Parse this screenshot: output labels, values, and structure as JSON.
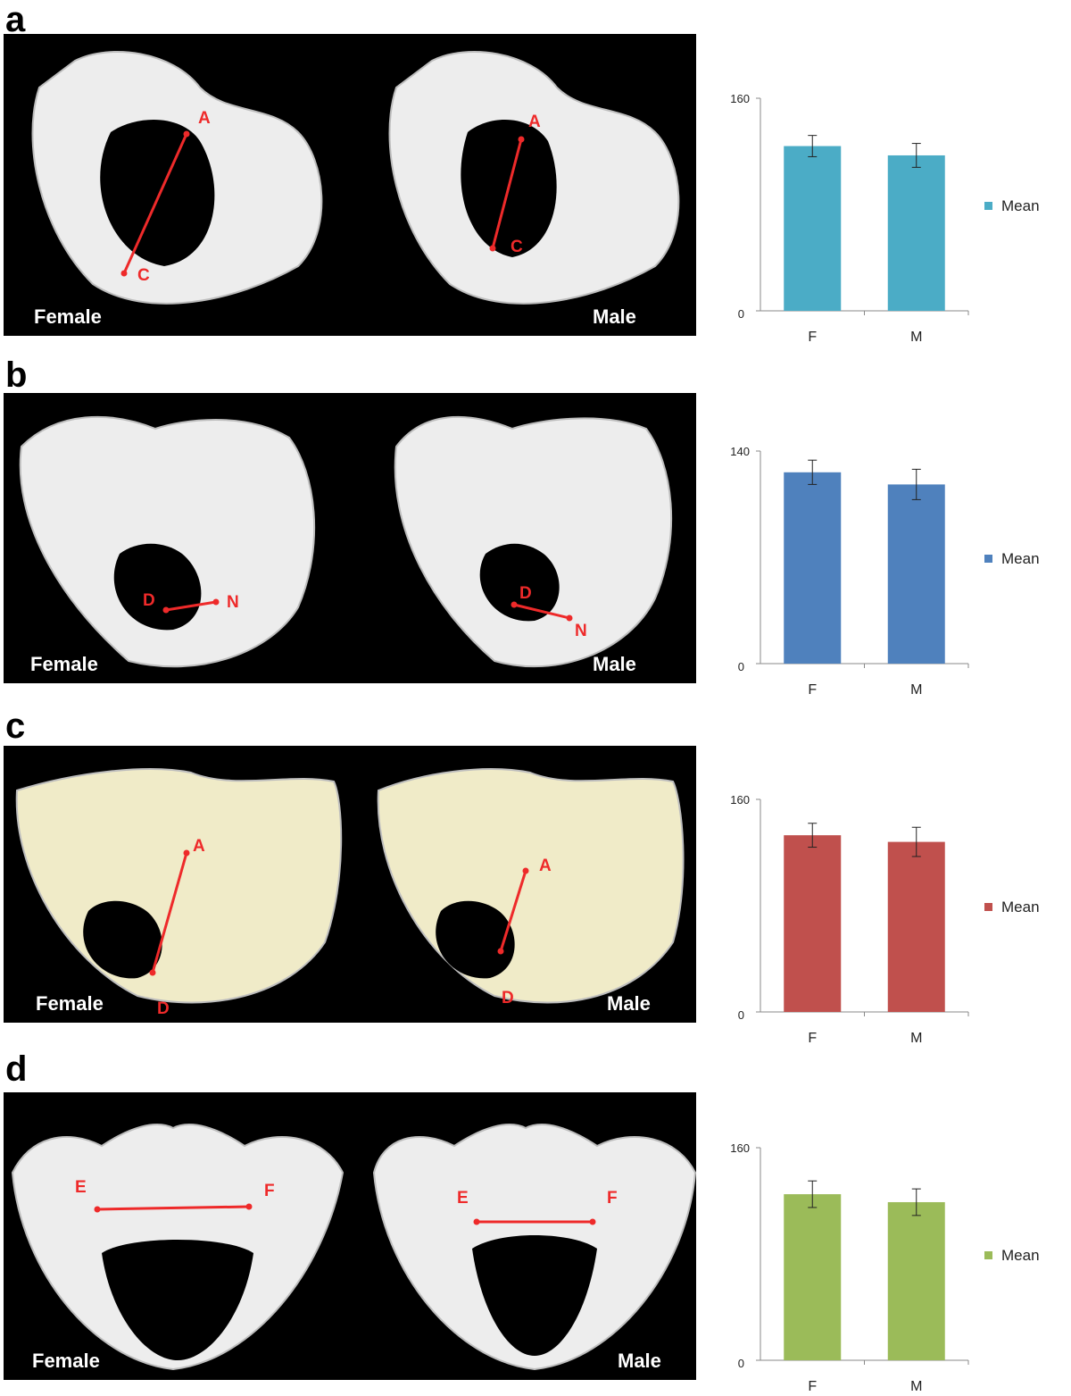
{
  "panels": [
    {
      "letter": "a",
      "female_label": "Female",
      "male_label": "Male",
      "point_labels": [
        "A",
        "C",
        "A",
        "C"
      ],
      "bone_tint": "#ededed",
      "chart": {
        "type": "bar",
        "categories": [
          "F",
          "M"
        ],
        "values": [
          124,
          117
        ],
        "errors": [
          8,
          9
        ],
        "ylim": [
          0,
          160
        ],
        "yticks": [
          "0",
          "160"
        ],
        "legend": "Mean",
        "color": "#4bacc6"
      }
    },
    {
      "letter": "b",
      "female_label": "Female",
      "male_label": "Male",
      "point_labels": [
        "D",
        "N",
        "D",
        "N"
      ],
      "bone_tint": "#ededed",
      "chart": {
        "type": "bar",
        "categories": [
          "F",
          "M"
        ],
        "values": [
          126,
          118
        ],
        "errors": [
          8,
          10
        ],
        "ylim": [
          0,
          140
        ],
        "yticks": [
          "0",
          "140"
        ],
        "legend": "Mean",
        "color": "#4f81bd"
      }
    },
    {
      "letter": "c",
      "female_label": "Female",
      "male_label": "Male",
      "point_labels": [
        "A",
        "D",
        "A",
        "D"
      ],
      "bone_tint": "#f0ebc8",
      "chart": {
        "type": "bar",
        "categories": [
          "F",
          "M"
        ],
        "values": [
          133,
          128
        ],
        "errors": [
          9,
          11
        ],
        "ylim": [
          0,
          160
        ],
        "yticks": [
          "0",
          "160"
        ],
        "legend": "Mean",
        "color": "#c0504d"
      }
    },
    {
      "letter": "d",
      "female_label": "Female",
      "male_label": "Male",
      "point_labels": [
        "E",
        "F",
        "E",
        "F"
      ],
      "bone_tint": "#ededed",
      "chart": {
        "type": "bar",
        "categories": [
          "F",
          "M"
        ],
        "values": [
          125,
          119
        ],
        "errors": [
          10,
          10
        ],
        "ylim": [
          0,
          160
        ],
        "yticks": [
          "0",
          "160"
        ],
        "legend": "Mean",
        "color": "#9bbb59"
      }
    }
  ],
  "chart_data": [
    {
      "type": "bar",
      "categories": [
        "F",
        "M"
      ],
      "series": [
        {
          "name": "Mean",
          "values": [
            124,
            117
          ]
        }
      ],
      "ylim": [
        0,
        160
      ]
    },
    {
      "type": "bar",
      "categories": [
        "F",
        "M"
      ],
      "series": [
        {
          "name": "Mean",
          "values": [
            126,
            118
          ]
        }
      ],
      "ylim": [
        0,
        140
      ]
    },
    {
      "type": "bar",
      "categories": [
        "F",
        "M"
      ],
      "series": [
        {
          "name": "Mean",
          "values": [
            133,
            128
          ]
        }
      ],
      "ylim": [
        0,
        160
      ]
    },
    {
      "type": "bar",
      "categories": [
        "F",
        "M"
      ],
      "series": [
        {
          "name": "Mean",
          "values": [
            125,
            119
          ]
        }
      ],
      "ylim": [
        0,
        160
      ]
    }
  ]
}
